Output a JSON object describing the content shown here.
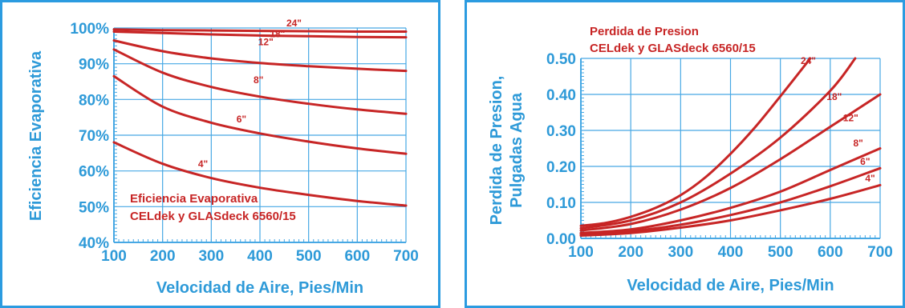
{
  "colors": {
    "frame": "#2b9be0",
    "axis_text": "#2e9ad8",
    "grid": "#47a8e4",
    "series": "#c72525",
    "title": "#c72525"
  },
  "chart_data": [
    {
      "type": "line",
      "title_lines": [
        "Eficiencia Evaporativa",
        "CELdek y GLASdeck 6560/15"
      ],
      "xlabel": "Velocidad de Aire, Pies/Min",
      "ylabel": "Eficiencia Evaporativa",
      "xlim": [
        100,
        700
      ],
      "ylim": [
        40,
        100
      ],
      "x_ticks": [
        100,
        200,
        300,
        400,
        500,
        600,
        700
      ],
      "x_tick_labels": [
        "100",
        "200",
        "300",
        "400",
        "500",
        "600",
        "700"
      ],
      "y_ticks": [
        40,
        50,
        60,
        70,
        80,
        90,
        100
      ],
      "y_tick_labels": [
        "40%",
        "50%",
        "60%",
        "70%",
        "80%",
        "90%",
        "100%"
      ],
      "grid": true,
      "series": [
        {
          "name": "24\"",
          "x": [
            100,
            200,
            300,
            400,
            500,
            600,
            700
          ],
          "y": [
            99.6,
            99.4,
            99.3,
            99.2,
            99.1,
            99.0,
            99.0
          ]
        },
        {
          "name": "18\"",
          "x": [
            100,
            200,
            300,
            400,
            500,
            600,
            700
          ],
          "y": [
            99.0,
            98.6,
            98.2,
            97.9,
            97.7,
            97.5,
            97.4
          ]
        },
        {
          "name": "12\"",
          "x": [
            100,
            200,
            300,
            400,
            500,
            600,
            700
          ],
          "y": [
            96.5,
            93.5,
            91.5,
            90.2,
            89.3,
            88.6,
            88.0
          ]
        },
        {
          "name": "8\"",
          "x": [
            100,
            200,
            300,
            400,
            500,
            600,
            700
          ],
          "y": [
            94.0,
            87.5,
            83.5,
            80.8,
            78.8,
            77.2,
            76.0
          ]
        },
        {
          "name": "6\"",
          "x": [
            100,
            200,
            300,
            400,
            500,
            600,
            700
          ],
          "y": [
            86.5,
            78.0,
            73.5,
            70.5,
            68.2,
            66.3,
            64.8
          ]
        },
        {
          "name": "4\"",
          "x": [
            100,
            200,
            300,
            400,
            500,
            600,
            700
          ],
          "y": [
            68.0,
            62.0,
            58.0,
            55.3,
            53.3,
            51.6,
            50.3
          ]
        }
      ],
      "label_positions": {
        "24\"": [
          470,
          100.4
        ],
        "18\"": [
          436,
          97.4
        ],
        "12\"": [
          412,
          95.2
        ],
        "8\"": [
          397,
          84.6
        ],
        "6\"": [
          362,
          73.6
        ],
        "4\"": [
          283,
          61.0
        ]
      }
    },
    {
      "type": "line",
      "title_lines": [
        "Perdida de Presion",
        "CELdek y GLASdeck 6560/15"
      ],
      "xlabel": "Velocidad de Aire, Pies/Min",
      "ylabel_lines": [
        "Perdida de Presion,",
        "Pulgadas Agua"
      ],
      "xlim": [
        100,
        700
      ],
      "ylim": [
        0,
        0.5
      ],
      "x_ticks": [
        100,
        200,
        300,
        400,
        500,
        600,
        700
      ],
      "x_tick_labels": [
        "100",
        "200",
        "300",
        "400",
        "500",
        "600",
        "700"
      ],
      "y_ticks": [
        0,
        0.1,
        0.2,
        0.3,
        0.4,
        0.5
      ],
      "y_tick_labels": [
        "0.00",
        "0.10",
        "0.20",
        "0.30",
        "0.40",
        "0.50"
      ],
      "grid": true,
      "series": [
        {
          "name": "24\"",
          "x": [
            100,
            150,
            200,
            250,
            300,
            350,
            400,
            450,
            500,
            560
          ],
          "y": [
            0.035,
            0.043,
            0.06,
            0.085,
            0.12,
            0.17,
            0.235,
            0.31,
            0.395,
            0.5
          ]
        },
        {
          "name": "18\"",
          "x": [
            100,
            200,
            300,
            400,
            500,
            600,
            650
          ],
          "y": [
            0.028,
            0.05,
            0.1,
            0.18,
            0.28,
            0.41,
            0.5
          ]
        },
        {
          "name": "12\"",
          "x": [
            100,
            200,
            300,
            400,
            500,
            600,
            700
          ],
          "y": [
            0.022,
            0.04,
            0.08,
            0.14,
            0.22,
            0.31,
            0.4
          ]
        },
        {
          "name": "8\"",
          "x": [
            100,
            200,
            300,
            400,
            500,
            600,
            700
          ],
          "y": [
            0.015,
            0.025,
            0.05,
            0.085,
            0.13,
            0.19,
            0.25
          ]
        },
        {
          "name": "6\"",
          "x": [
            100,
            200,
            300,
            400,
            500,
            600,
            700
          ],
          "y": [
            0.012,
            0.02,
            0.038,
            0.065,
            0.1,
            0.145,
            0.195
          ]
        },
        {
          "name": "4\"",
          "x": [
            100,
            200,
            300,
            400,
            500,
            600,
            700
          ],
          "y": [
            0.008,
            0.015,
            0.03,
            0.05,
            0.078,
            0.11,
            0.148
          ]
        }
      ],
      "label_positions": {
        "24\"": [
          556,
          0.485
        ],
        "18\"": [
          608,
          0.385
        ],
        "12\"": [
          641,
          0.326
        ],
        "8\"": [
          656,
          0.256
        ],
        "6\"": [
          670,
          0.205
        ],
        "4\"": [
          680,
          0.158
        ]
      }
    }
  ]
}
